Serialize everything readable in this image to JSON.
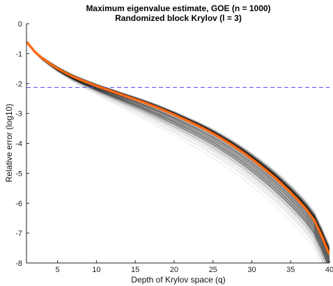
{
  "chart_data": {
    "type": "line",
    "title": "Maximum eigenvalue estimate, GOE (n = 1000)",
    "subtitle": "Randomized block Krylov (l = 3)",
    "xlabel": "Depth of Krylov space (q)",
    "ylabel": "Relative error (log10)",
    "xlim": [
      1,
      40
    ],
    "ylim": [
      -8,
      0
    ],
    "xticks": [
      "5",
      "10",
      "15",
      "20",
      "25",
      "30",
      "35",
      "40"
    ],
    "yticks": [
      "0",
      "-1",
      "-2",
      "-3",
      "-4",
      "-5",
      "-6",
      "-7",
      "-8"
    ],
    "grid": false,
    "legend": "none",
    "reference_line": {
      "y": -2.13,
      "color": "#4a4af0",
      "style": "dashed"
    },
    "series": [
      {
        "color": "#ff6a13",
        "x": [
          1,
          2,
          3,
          4,
          5,
          6,
          7,
          8,
          9,
          10,
          11,
          12,
          13,
          14,
          15,
          16,
          17,
          18,
          19,
          20,
          21,
          22,
          23,
          24,
          25,
          26,
          27,
          28,
          29,
          30,
          31,
          32,
          33,
          34,
          35,
          36,
          37,
          38,
          39,
          40
        ],
        "values": [
          -0.6,
          -0.92,
          -1.15,
          -1.33,
          -1.5,
          -1.64,
          -1.77,
          -1.88,
          -1.98,
          -2.08,
          -2.17,
          -2.26,
          -2.35,
          -2.44,
          -2.53,
          -2.62,
          -2.72,
          -2.82,
          -2.93,
          -3.04,
          -3.16,
          -3.28,
          -3.4,
          -3.53,
          -3.67,
          -3.82,
          -3.98,
          -4.15,
          -4.33,
          -4.52,
          -4.72,
          -4.93,
          -5.15,
          -5.39,
          -5.64,
          -5.91,
          -6.2,
          -6.55,
          -7.1,
          -7.72
        ]
      }
    ],
    "trace_bundle": {
      "color": "#000000",
      "count": 220,
      "spread_upper": [
        0.03,
        0.06,
        0.09,
        0.11,
        0.12,
        0.12,
        0.12,
        0.12,
        0.12,
        0.12,
        0.12,
        0.13,
        0.13,
        0.14,
        0.15,
        0.16,
        0.17,
        0.18,
        0.19,
        0.2,
        0.21,
        0.22,
        0.23,
        0.24,
        0.26,
        0.27,
        0.29,
        0.31,
        0.33,
        0.35,
        0.37,
        0.39,
        0.41,
        0.43,
        0.45,
        0.47,
        0.49,
        0.51,
        0.53,
        0.55
      ],
      "spread_lower": [
        0.03,
        0.06,
        0.1,
        0.13,
        0.16,
        0.2,
        0.24,
        0.29,
        0.34,
        0.4,
        0.46,
        0.52,
        0.58,
        0.64,
        0.7,
        0.76,
        0.82,
        0.87,
        0.92,
        0.96,
        1.0,
        1.04,
        1.07,
        1.1,
        1.13,
        1.16,
        1.19,
        1.21,
        1.23,
        1.25,
        1.27,
        1.29,
        1.3,
        1.31,
        1.32,
        1.33,
        1.34,
        1.35,
        1.36,
        1.37
      ]
    }
  }
}
